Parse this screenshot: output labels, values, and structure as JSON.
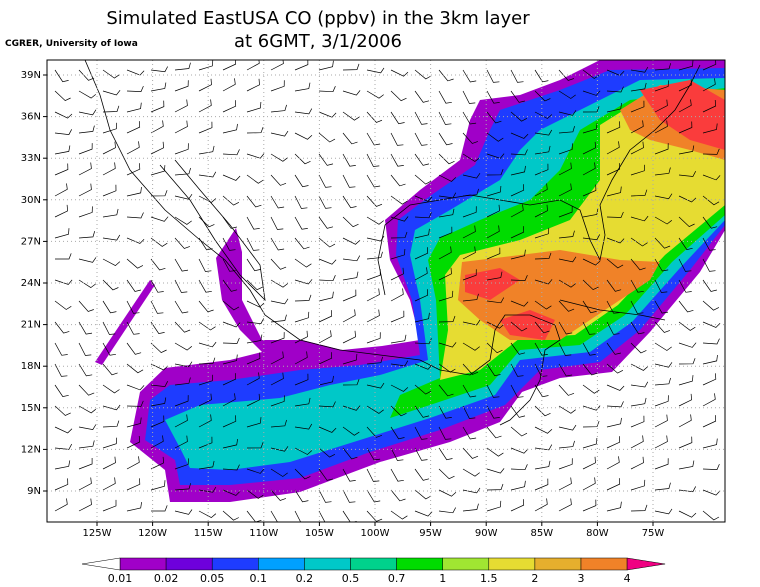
{
  "header": {
    "title_line1": "Simulated EastUSA CO (ppbv) in the 3km layer",
    "title_line2": "at 6GMT, 3/1/2006",
    "credit": "CGRER, University of Iowa"
  },
  "map": {
    "lat_labels": [
      "39N",
      "36N",
      "33N",
      "30N",
      "27N",
      "24N",
      "21N",
      "18N",
      "15N",
      "12N",
      "9N"
    ],
    "lon_labels": [
      "125W",
      "120W",
      "115W",
      "110W",
      "105W",
      "100W",
      "95W",
      "90W",
      "85W",
      "80W",
      "75W"
    ]
  },
  "colorbar": {
    "labels": [
      "0.01",
      "0.02",
      "0.05",
      "0.1",
      "0.2",
      "0.5",
      "0.7",
      "1",
      "1.5",
      "2",
      "3",
      "4"
    ],
    "colors": [
      "#ffffff",
      "#a000c8",
      "#6e00dc",
      "#1e3cff",
      "#00a0ff",
      "#00c8c8",
      "#00d28c",
      "#00dc00",
      "#a0e632",
      "#e6dc32",
      "#e6af2d",
      "#f08228",
      "#fa3c3c",
      "#f00082"
    ]
  }
}
